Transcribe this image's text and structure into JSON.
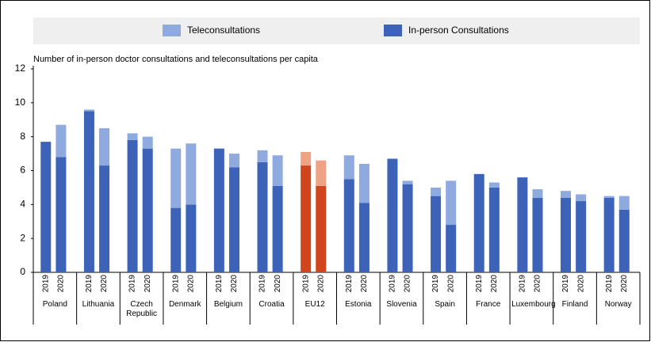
{
  "chart_data": {
    "type": "stacked_bar",
    "subtitle": "Number of in-person doctor consultations and teleconsultations per capita",
    "groups": [
      "Poland",
      "Lithuania",
      "Czech Republic",
      "Denmark",
      "Belgium",
      "Croatia",
      "EU12",
      "Estonia",
      "Slovenia",
      "Spain",
      "France",
      "Luxembourg",
      "Finland",
      "Norway"
    ],
    "years": [
      "2019",
      "2020"
    ],
    "highlight_group": "EU12",
    "series": [
      {
        "name": "Teleconsultations",
        "color": "#8eaadf",
        "highlight_color": "#eea384",
        "values": [
          0,
          1.9,
          0.1,
          2.2,
          0.4,
          0.7,
          3.5,
          3.6,
          0,
          0.8,
          0.7,
          1.8,
          0.8,
          1.5,
          1.4,
          2.3,
          0,
          0.2,
          0.5,
          2.6,
          0,
          0.3,
          0,
          0.5,
          0.4,
          0.4,
          0.1,
          0.8
        ]
      },
      {
        "name": "In-person Consultations",
        "color": "#3d63b8",
        "highlight_color": "#d0441e",
        "values": [
          7.7,
          6.8,
          9.5,
          6.3,
          7.8,
          7.3,
          3.8,
          4.0,
          7.3,
          6.2,
          6.5,
          5.1,
          6.3,
          5.1,
          5.5,
          4.1,
          6.7,
          5.2,
          4.5,
          2.8,
          5.8,
          5.0,
          5.6,
          4.4,
          4.4,
          4.2,
          4.4,
          3.7
        ]
      }
    ],
    "ylim": [
      0,
      12
    ],
    "yticks": [
      0,
      2,
      4,
      6,
      8,
      10,
      12
    ]
  }
}
